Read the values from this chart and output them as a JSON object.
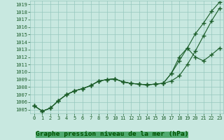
{
  "x": [
    0,
    1,
    2,
    3,
    4,
    5,
    6,
    7,
    8,
    9,
    10,
    11,
    12,
    13,
    14,
    15,
    16,
    17,
    18,
    19,
    20,
    21,
    22,
    23
  ],
  "line1": [
    1005.5,
    1004.8,
    1005.2,
    1006.2,
    1007.0,
    1007.5,
    1007.8,
    1008.2,
    1008.8,
    1009.0,
    1009.1,
    1008.7,
    1008.5,
    1008.4,
    1008.3,
    1008.4,
    1008.5,
    1009.8,
    1012.0,
    1013.2,
    1015.1,
    1016.5,
    1018.1,
    1019.3
  ],
  "line2": [
    1005.5,
    1004.8,
    1005.2,
    1006.2,
    1007.0,
    1007.5,
    1007.8,
    1008.2,
    1008.8,
    1009.0,
    1009.1,
    1008.7,
    1008.5,
    1008.4,
    1008.3,
    1008.4,
    1008.5,
    1008.8,
    1009.5,
    1011.0,
    1012.8,
    1014.8,
    1016.8,
    1018.5
  ],
  "line3": [
    1005.5,
    1004.8,
    1005.2,
    1006.2,
    1007.0,
    1007.5,
    1007.8,
    1008.2,
    1008.8,
    1009.0,
    1009.1,
    1008.7,
    1008.5,
    1008.4,
    1008.3,
    1008.4,
    1008.5,
    1009.8,
    1011.5,
    1013.2,
    1012.0,
    1011.5,
    1012.3,
    1013.2
  ],
  "ylim_min": 1004.5,
  "ylim_max": 1019.5,
  "yticks": [
    1005,
    1006,
    1007,
    1008,
    1009,
    1010,
    1011,
    1012,
    1013,
    1014,
    1015,
    1016,
    1017,
    1018,
    1019
  ],
  "bg_color": "#c8e8e0",
  "grid_color": "#96c8be",
  "line_color": "#1a5c28",
  "marker": "+",
  "xlabel": "Graphe pression niveau de la mer (hPa)",
  "xlabel_fgcolor": "#005000",
  "xlabel_bgcolor": "#50aa70",
  "tick_fontsize": 5.0,
  "label_fontsize": 6.8,
  "linewidth": 0.8,
  "markersize": 4.0
}
